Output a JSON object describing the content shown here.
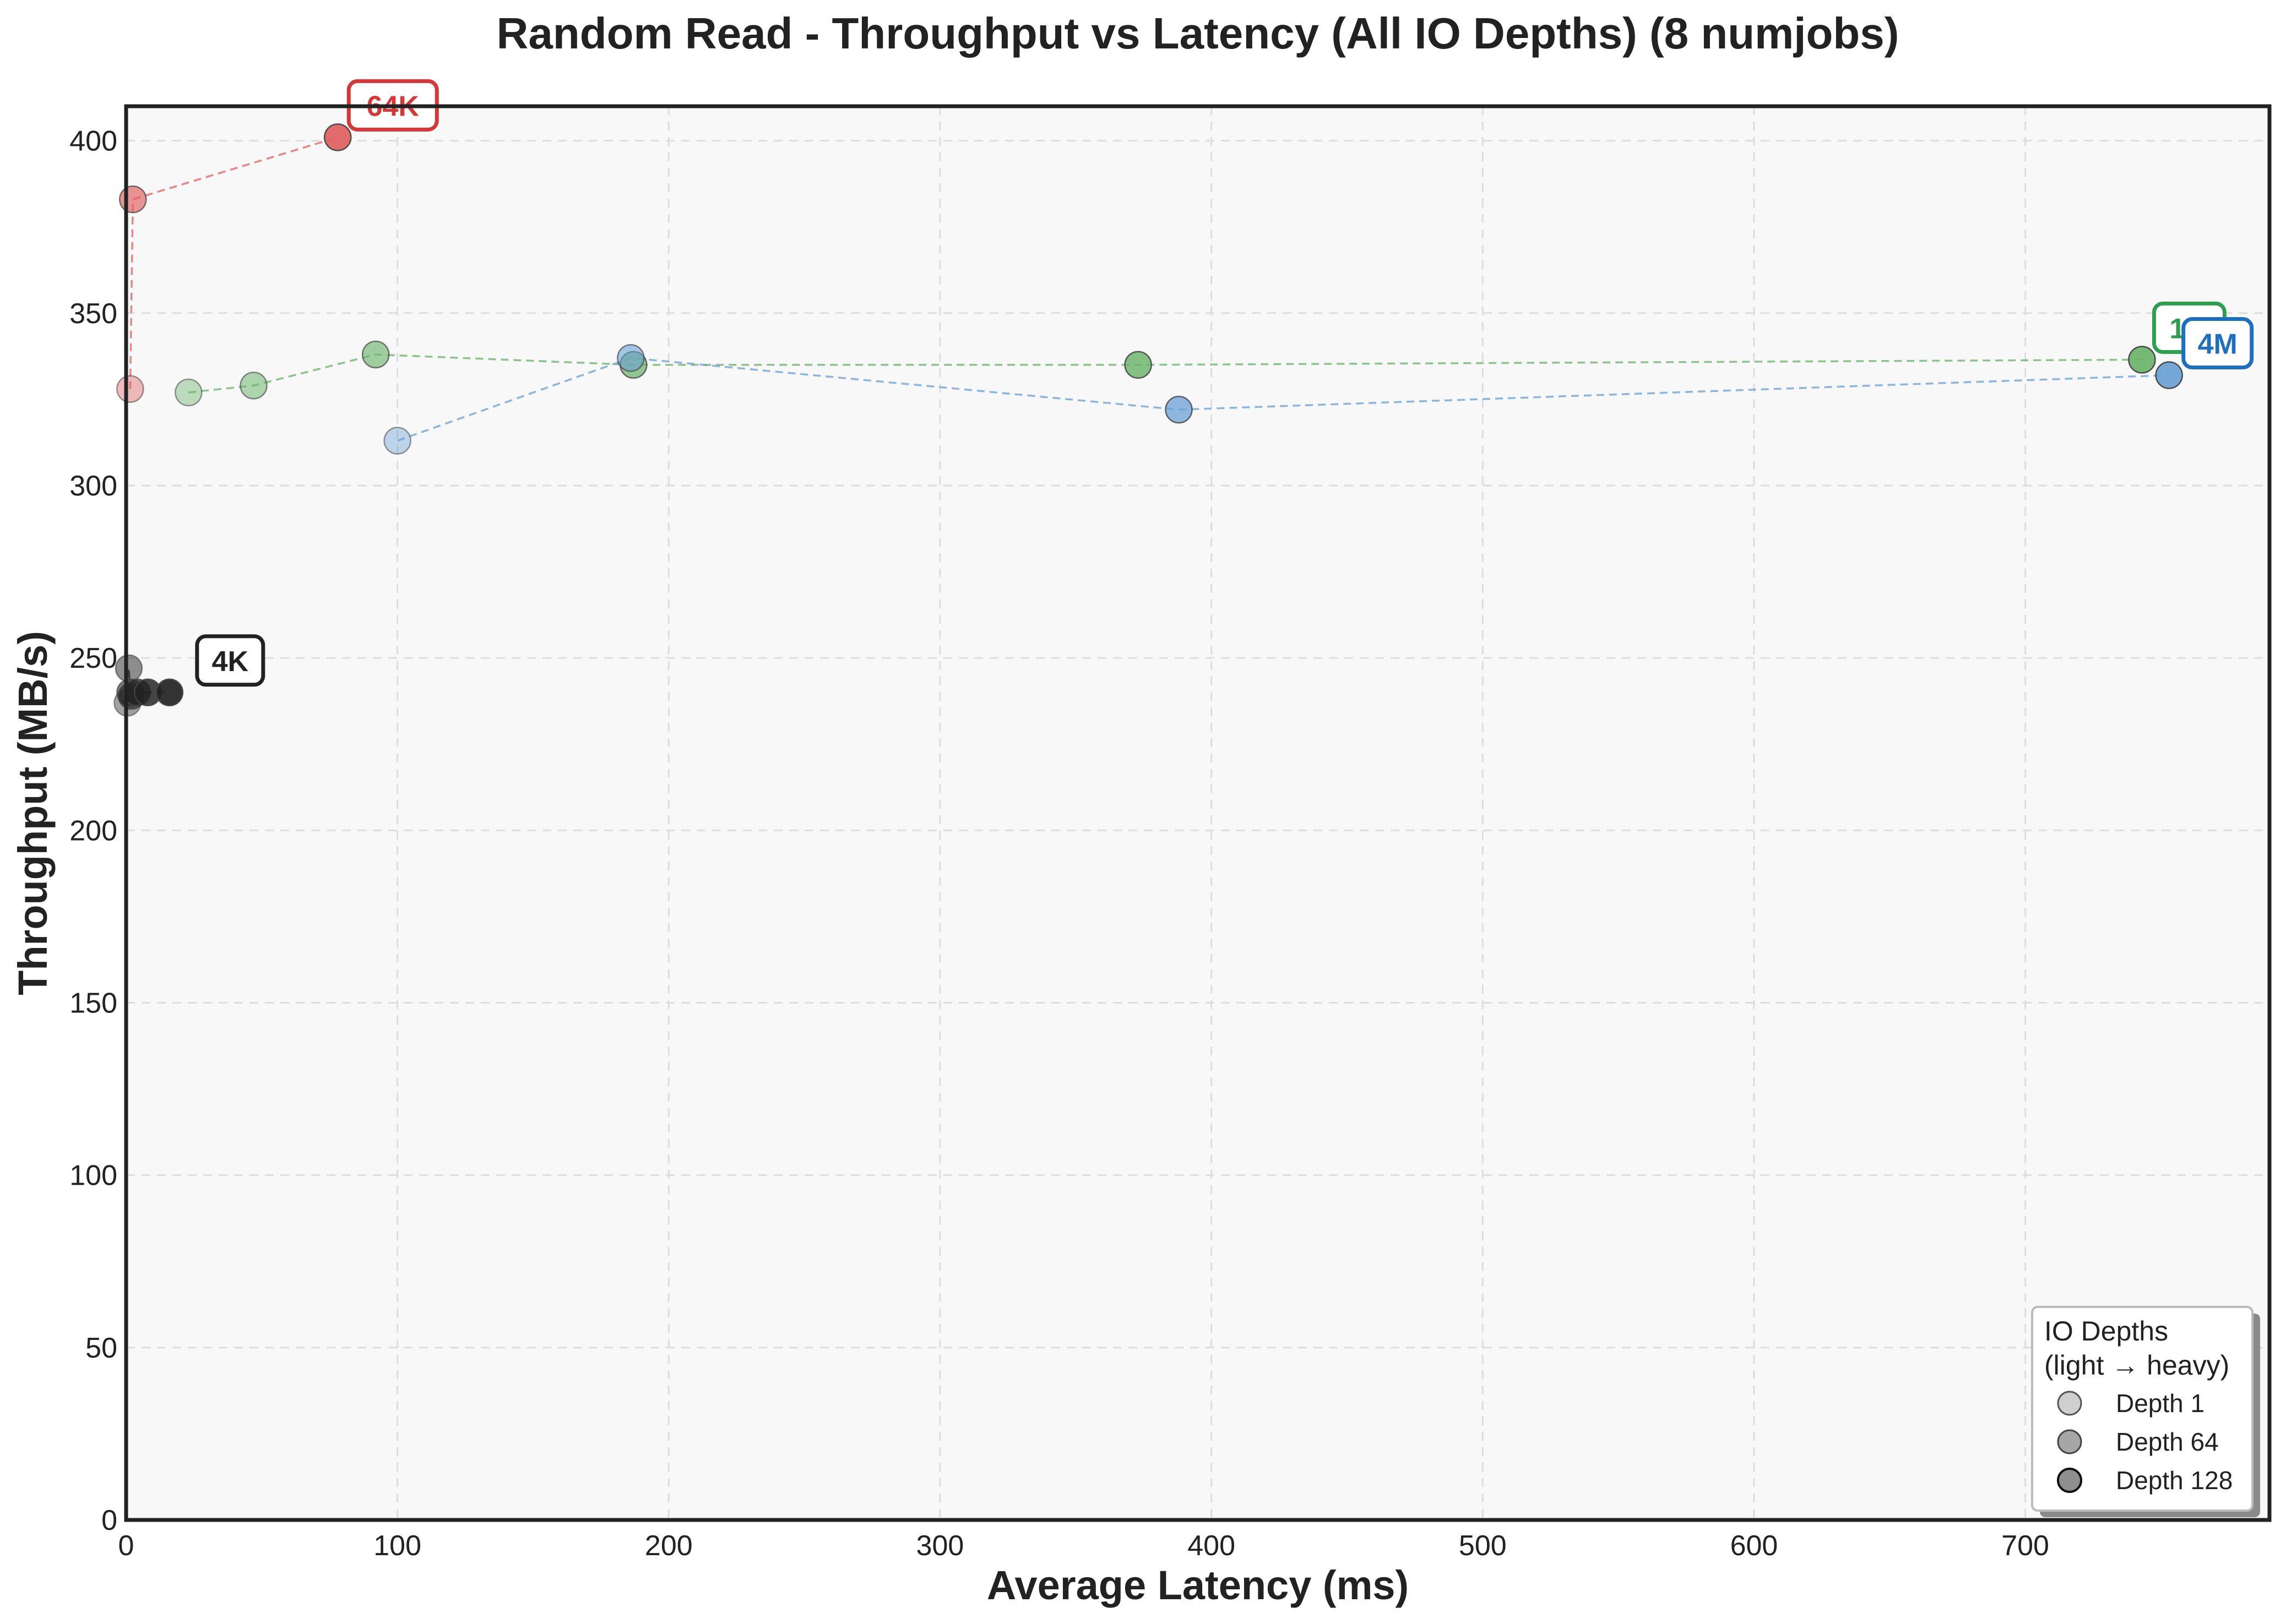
{
  "chart_data": {
    "type": "scatter",
    "title": "Random Read - Throughput vs Latency (All IO Depths) (8 numjobs)",
    "xlabel": "Average Latency (ms)",
    "ylabel": "Throughput (MB/s)",
    "xlim": [
      0,
      790
    ],
    "ylim": [
      0,
      410
    ],
    "xticks": [
      0,
      100,
      200,
      300,
      400,
      500,
      600,
      700
    ],
    "yticks": [
      0,
      50,
      100,
      150,
      200,
      250,
      300,
      350,
      400
    ],
    "grid": true,
    "series": [
      {
        "name": "4K",
        "color": "#222222",
        "label_color": "#222222",
        "points": [
          {
            "x": 0.5,
            "y": 237,
            "depth": 1
          },
          {
            "x": 1,
            "y": 247,
            "depth": 2
          },
          {
            "x": 1.5,
            "y": 240,
            "depth": 4
          },
          {
            "x": 2,
            "y": 239,
            "depth": 8
          },
          {
            "x": 4,
            "y": 240,
            "depth": 16
          },
          {
            "x": 8,
            "y": 240,
            "depth": 32
          },
          {
            "x": 16,
            "y": 240,
            "depth": 64
          }
        ]
      },
      {
        "name": "64K",
        "color": "#e06060",
        "label_color": "#d63838",
        "points": [
          {
            "x": 1.5,
            "y": 328,
            "depth": 1
          },
          {
            "x": 2.5,
            "y": 383,
            "depth": 8
          },
          {
            "x": 78,
            "y": 401,
            "depth": 64
          }
        ]
      },
      {
        "name": "1M",
        "color": "#6ab36a",
        "label_color": "#2e9e4f",
        "points": [
          {
            "x": 23,
            "y": 327,
            "depth": 1
          },
          {
            "x": 47,
            "y": 329,
            "depth": 2
          },
          {
            "x": 92,
            "y": 338,
            "depth": 4
          },
          {
            "x": 187,
            "y": 335,
            "depth": 8
          },
          {
            "x": 373,
            "y": 335,
            "depth": 16
          },
          {
            "x": 743,
            "y": 336.5,
            "depth": 32
          }
        ]
      },
      {
        "name": "4M",
        "color": "#6a9fd6",
        "label_color": "#1f6fbf",
        "points": [
          {
            "x": 100,
            "y": 313,
            "depth": 1
          },
          {
            "x": 186,
            "y": 337,
            "depth": 2
          },
          {
            "x": 388,
            "y": 322,
            "depth": 4
          },
          {
            "x": 753,
            "y": 332,
            "depth": 8
          }
        ]
      }
    ],
    "legend": {
      "position": "bottom-right",
      "title_line1": "IO Depths",
      "title_line2": "(light → heavy)",
      "entries": [
        "Depth 1",
        "Depth 64",
        "Depth 128"
      ]
    }
  }
}
